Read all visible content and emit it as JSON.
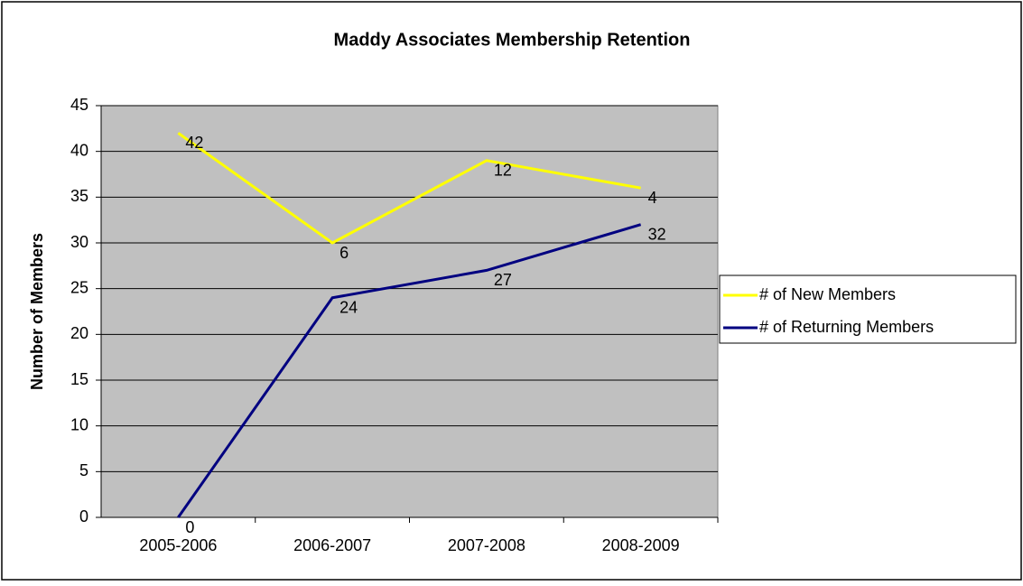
{
  "chart_data": {
    "type": "line",
    "stacked": true,
    "title": "Maddy Associates Membership Retention",
    "y_label": "Number of Members",
    "categories": [
      "2005-2006",
      "2006-2007",
      "2007-2008",
      "2008-2009"
    ],
    "series": [
      {
        "name": "# of Returning Members",
        "color": "#000080",
        "values": [
          0,
          24,
          27,
          32
        ]
      },
      {
        "name": "# of New Members",
        "color": "#ffff00",
        "values": [
          42,
          6,
          12,
          4
        ]
      }
    ],
    "ylim": [
      0,
      45
    ],
    "yticks": [
      0,
      5,
      10,
      15,
      20,
      25,
      30,
      35,
      40,
      45
    ],
    "grid": true,
    "legend": "right",
    "plot_background": "#c0c0c0"
  }
}
